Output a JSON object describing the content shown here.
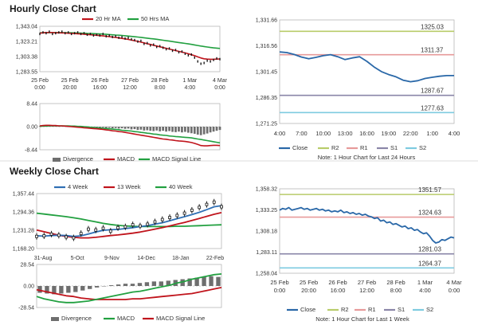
{
  "sections": {
    "hourly_title": "Hourly Close Chart",
    "weekly_title": "Weekly Close Chart"
  },
  "colors": {
    "price": "#1a1a1a",
    "ma_red": "#c0141c",
    "ma_green": "#22a040",
    "ma_blue": "#2f6fb4",
    "close_line": "#2a68a8",
    "r2": "#b8cc6a",
    "r1": "#e79a9a",
    "s1": "#8a86a8",
    "s2": "#7ecbe0",
    "divergence": "#6e6e6e",
    "grid": "#c8c8c8"
  },
  "chart_data": [
    {
      "id": "hourly-price",
      "type": "line",
      "legend": [
        "20 Hr MA",
        "50 Hrs MA"
      ],
      "y_ticks": [
        "1,343.04",
        "1,323.21",
        "1,303.38",
        "1,283.55"
      ],
      "ylim": [
        1283.55,
        1343.04
      ],
      "x_ticks": [
        [
          "25 Feb",
          "0:00"
        ],
        [
          "25 Feb",
          "20:00"
        ],
        [
          "26 Feb",
          "16:00"
        ],
        [
          "27 Feb",
          "12:00"
        ],
        [
          "28 Feb",
          "8:00"
        ],
        [
          "1 Mar",
          "4:00"
        ],
        [
          "4 Mar",
          "0:00"
        ]
      ],
      "price": [
        1333,
        1335,
        1334,
        1336,
        1333,
        1334,
        1335,
        1336,
        1334,
        1335,
        1333,
        1334,
        1335,
        1333,
        1334,
        1332,
        1333,
        1331,
        1332,
        1331,
        1333,
        1330,
        1331,
        1329,
        1330,
        1328,
        1329,
        1327,
        1328,
        1326,
        1325,
        1323,
        1324,
        1320,
        1321,
        1318,
        1319,
        1316,
        1317,
        1315,
        1313,
        1314,
        1311,
        1312,
        1309,
        1310,
        1307,
        1305,
        1306,
        1302,
        1297,
        1294,
        1295,
        1298,
        1297,
        1299,
        1301,
        1300
      ],
      "ma20": [
        1334,
        1334.5,
        1334.8,
        1335,
        1334.8,
        1334.6,
        1334.5,
        1334.4,
        1334.2,
        1334,
        1333.8,
        1333.5,
        1333.2,
        1333,
        1332.7,
        1332.3,
        1332,
        1331.6,
        1331.2,
        1330.8,
        1330.4,
        1330,
        1329.5,
        1329,
        1328.4,
        1327.8,
        1327.2,
        1326.5,
        1325.8,
        1325,
        1324.2,
        1323.3,
        1322.3,
        1321.3,
        1320.2,
        1319.2,
        1318.2,
        1317.2,
        1316.2,
        1315.2,
        1314.2,
        1313.2,
        1312.2,
        1311.2,
        1310.2,
        1309.2,
        1308.2,
        1307,
        1305.8,
        1304.5,
        1303,
        1301.5,
        1300.5,
        1300,
        1299.8,
        1299.8,
        1300,
        1300.3
      ],
      "ma50": [
        1334.5,
        1334.6,
        1334.7,
        1334.8,
        1334.8,
        1334.8,
        1334.8,
        1334.8,
        1334.7,
        1334.6,
        1334.5,
        1334.4,
        1334.3,
        1334.1,
        1334,
        1333.8,
        1333.6,
        1333.4,
        1333.2,
        1333,
        1332.8,
        1332.5,
        1332.2,
        1331.9,
        1331.6,
        1331.3,
        1331,
        1330.6,
        1330.2,
        1329.8,
        1329.4,
        1329,
        1328.5,
        1328,
        1327.5,
        1327,
        1326.5,
        1326,
        1325.4,
        1324.8,
        1324.2,
        1323.6,
        1323,
        1322.4,
        1321.8,
        1321.2,
        1320.6,
        1320,
        1319.3,
        1318.6,
        1317.9,
        1317.2,
        1316.5,
        1315.9,
        1315.3,
        1314.8,
        1314.4,
        1314
      ]
    },
    {
      "id": "hourly-macd",
      "type": "bar",
      "legend": [
        "Divergence",
        "MACD",
        "MACD Signal Line"
      ],
      "y_ticks": [
        "8.44",
        "0.00",
        "-8.44"
      ],
      "ylim": [
        -8.44,
        8.44
      ],
      "divergence": [
        0.2,
        0.3,
        0.3,
        0.4,
        0.3,
        0.2,
        0.1,
        0.2,
        0.1,
        0,
        -0.1,
        0,
        -0.1,
        -0.2,
        -0.1,
        -0.2,
        -0.3,
        -0.2,
        -0.3,
        -0.4,
        -0.3,
        -0.5,
        -0.4,
        -0.6,
        -0.5,
        -0.7,
        -0.6,
        -0.8,
        -0.7,
        -1,
        -0.9,
        -1.2,
        -1.1,
        -1.4,
        -1.3,
        -1.5,
        -1.6,
        -1.4,
        -1.7,
        -1.5,
        -1.8,
        -1.6,
        -1.9,
        -2,
        -1.8,
        -2.1,
        -1.9,
        -2.2,
        -2.4,
        -2.6,
        -2.9,
        -3.1,
        -2.8,
        -2.5,
        -2.1,
        -1.8,
        -1.5,
        -1.2
      ],
      "macd": [
        0.3,
        0.4,
        0.5,
        0.5,
        0.4,
        0.4,
        0.3,
        0.3,
        0.2,
        0.1,
        0,
        -0.1,
        -0.2,
        -0.3,
        -0.4,
        -0.5,
        -0.6,
        -0.7,
        -0.8,
        -0.9,
        -1,
        -1.2,
        -1.3,
        -1.5,
        -1.6,
        -1.8,
        -1.9,
        -2.1,
        -2.3,
        -2.5,
        -2.7,
        -2.9,
        -3.1,
        -3.3,
        -3.5,
        -3.7,
        -3.9,
        -4.1,
        -4.3,
        -4.5,
        -4.6,
        -4.8,
        -4.9,
        -5.1,
        -5.2,
        -5.3,
        -5.4,
        -5.6,
        -5.8,
        -6.1,
        -6.5,
        -6.9,
        -7,
        -7,
        -6.9,
        -6.8,
        -6.8,
        -6.9
      ],
      "signal": [
        0.1,
        0.2,
        0.2,
        0.3,
        0.3,
        0.3,
        0.3,
        0.3,
        0.3,
        0.3,
        0.2,
        0.2,
        0.1,
        0.1,
        0,
        -0.1,
        -0.2,
        -0.3,
        -0.4,
        -0.5,
        -0.6,
        -0.7,
        -0.8,
        -0.9,
        -1,
        -1.1,
        -1.3,
        -1.4,
        -1.5,
        -1.6,
        -1.8,
        -1.9,
        -2.1,
        -2.2,
        -2.4,
        -2.5,
        -2.7,
        -2.8,
        -3,
        -3.1,
        -3.2,
        -3.4,
        -3.5,
        -3.6,
        -3.7,
        -3.8,
        -3.9,
        -4,
        -4.1,
        -4.3,
        -4.5,
        -4.7,
        -4.9,
        -5.1,
        -5.3,
        -5.5,
        -5.7,
        -5.9
      ]
    },
    {
      "id": "hourly-close-24h",
      "type": "line",
      "title_note": "Note: 1 Hour Chart for Last 24 Hours",
      "y_ticks": [
        "1,331.66",
        "1,316.56",
        "1,301.45",
        "1,286.35",
        "1,271.25"
      ],
      "ylim": [
        1271.25,
        1331.66
      ],
      "x_ticks": [
        "4:00",
        "7:00",
        "10:00",
        "13:00",
        "16:00",
        "19:00",
        "22:00",
        "1:00",
        "4:00"
      ],
      "levels": [
        {
          "name": "R2",
          "value": 1325.03,
          "label": "1325.03"
        },
        {
          "name": "R1",
          "value": 1311.37,
          "label": "1311.37"
        },
        {
          "name": "S1",
          "value": 1287.67,
          "label": "1287.67"
        },
        {
          "name": "S2",
          "value": 1277.63,
          "label": "1277.63"
        }
      ],
      "x": [
        0,
        1,
        2,
        3,
        4,
        5,
        6,
        7,
        8,
        9,
        10,
        11,
        12,
        13,
        14,
        15,
        16,
        17,
        18,
        19,
        20,
        21,
        22,
        23,
        24
      ],
      "close": [
        1313,
        1312.6,
        1311.5,
        1310,
        1309,
        1309.8,
        1310.8,
        1311.4,
        1310.2,
        1308.5,
        1309.5,
        1310.2,
        1307.5,
        1304.2,
        1301.5,
        1299.8,
        1298.5,
        1296.5,
        1295.6,
        1296.2,
        1297.5,
        1298.2,
        1298.8,
        1299.2,
        1299.2
      ],
      "legend": [
        "Close",
        "R2",
        "R1",
        "S1",
        "S2"
      ]
    },
    {
      "id": "weekly-price",
      "type": "line",
      "legend": [
        "4 Week",
        "13 Week",
        "40 Week"
      ],
      "y_ticks": [
        "1,357.44",
        "1,294.36",
        "1,231.28",
        "1,168.20"
      ],
      "ylim": [
        1168.2,
        1357.44
      ],
      "x_ticks": [
        "31-Aug",
        "5-Oct",
        "9-Nov",
        "14-Dec",
        "18-Jan",
        "22-Feb"
      ],
      "close": [
        1210,
        1212,
        1218,
        1214,
        1208,
        1205,
        1220,
        1235,
        1232,
        1238,
        1228,
        1240,
        1243,
        1250,
        1246,
        1252,
        1260,
        1268,
        1275,
        1282,
        1290,
        1300,
        1310,
        1320,
        1328,
        1312
      ],
      "ma4": [
        1212,
        1211,
        1213,
        1214,
        1213,
        1210,
        1212,
        1218,
        1225,
        1231,
        1233,
        1234,
        1237,
        1240,
        1244,
        1247,
        1252,
        1257,
        1264,
        1271,
        1278,
        1285,
        1293,
        1302,
        1312,
        1316
      ],
      "ma13": [
        1232,
        1226,
        1220,
        1214,
        1210,
        1207,
        1205,
        1205,
        1207,
        1210,
        1213,
        1215,
        1218,
        1221,
        1225,
        1230,
        1235,
        1240,
        1246,
        1252,
        1258,
        1265,
        1272,
        1279,
        1286,
        1292
      ],
      "ma40": [
        1290,
        1287,
        1284,
        1281,
        1278,
        1274,
        1270,
        1265,
        1260,
        1255,
        1251,
        1248,
        1246,
        1245,
        1244,
        1244,
        1244,
        1244,
        1244,
        1245,
        1245,
        1246,
        1247,
        1248,
        1249,
        1250
      ]
    },
    {
      "id": "weekly-macd",
      "type": "bar",
      "legend": [
        "Divergence",
        "MACD",
        "MACD Signal Line"
      ],
      "y_ticks": [
        "28.54",
        "0.00",
        "-28.54"
      ],
      "ylim": [
        -28.54,
        28.54
      ],
      "divergence": [
        -9,
        -10,
        -11,
        -10,
        -9,
        -8,
        -6,
        -4,
        -2,
        0,
        1,
        2,
        3,
        3,
        4,
        5,
        6,
        6,
        7,
        8,
        9,
        10,
        11,
        12,
        13,
        12
      ],
      "macd": [
        -14,
        -17,
        -19,
        -21,
        -22,
        -22,
        -21,
        -20,
        -18,
        -16,
        -14,
        -12,
        -10,
        -8,
        -7,
        -5,
        -3,
        -1,
        1,
        4,
        6,
        9,
        11,
        13,
        15,
        16
      ],
      "signal": [
        -5,
        -7,
        -9,
        -11,
        -13,
        -14,
        -16,
        -17,
        -18,
        -18,
        -18,
        -18,
        -18,
        -17,
        -17,
        -16,
        -15,
        -14,
        -13,
        -12,
        -11,
        -10,
        -8,
        -6,
        -4,
        -2
      ]
    },
    {
      "id": "hourly-close-week",
      "type": "line",
      "title_note": "Note: 1 Hour Chart for Last 1 Week",
      "y_ticks": [
        "1,358.32",
        "1,333.25",
        "1,308.18",
        "1,283.11",
        "1,258.04"
      ],
      "ylim": [
        1258.04,
        1358.32
      ],
      "x_ticks": [
        [
          "25 Feb",
          "0:00"
        ],
        [
          "25 Feb",
          "20:00"
        ],
        [
          "26 Feb",
          "16:00"
        ],
        [
          "27 Feb",
          "12:00"
        ],
        [
          "28 Feb",
          "8:00"
        ],
        [
          "1 Mar",
          "4:00"
        ],
        [
          "4 Mar",
          "0:00"
        ]
      ],
      "levels": [
        {
          "name": "R2",
          "value": 1351.57,
          "label": "1351.57"
        },
        {
          "name": "R1",
          "value": 1324.63,
          "label": "1324.63"
        },
        {
          "name": "S1",
          "value": 1281.03,
          "label": "1281.03"
        },
        {
          "name": "S2",
          "value": 1264.37,
          "label": "1264.37"
        }
      ],
      "close": [
        1333,
        1335,
        1334,
        1336,
        1333,
        1334,
        1335,
        1336,
        1334,
        1335,
        1333,
        1334,
        1335,
        1333,
        1334,
        1332,
        1333,
        1331,
        1332,
        1331,
        1333,
        1330,
        1331,
        1329,
        1330,
        1328,
        1329,
        1327,
        1328,
        1326,
        1325,
        1323,
        1324,
        1320,
        1321,
        1318,
        1319,
        1316,
        1317,
        1315,
        1313,
        1314,
        1311,
        1312,
        1309,
        1310,
        1307,
        1305,
        1306,
        1302,
        1297,
        1294,
        1295,
        1298,
        1297,
        1299,
        1301,
        1300
      ],
      "legend": [
        "Close",
        "R2",
        "R1",
        "S1",
        "S2"
      ]
    }
  ]
}
